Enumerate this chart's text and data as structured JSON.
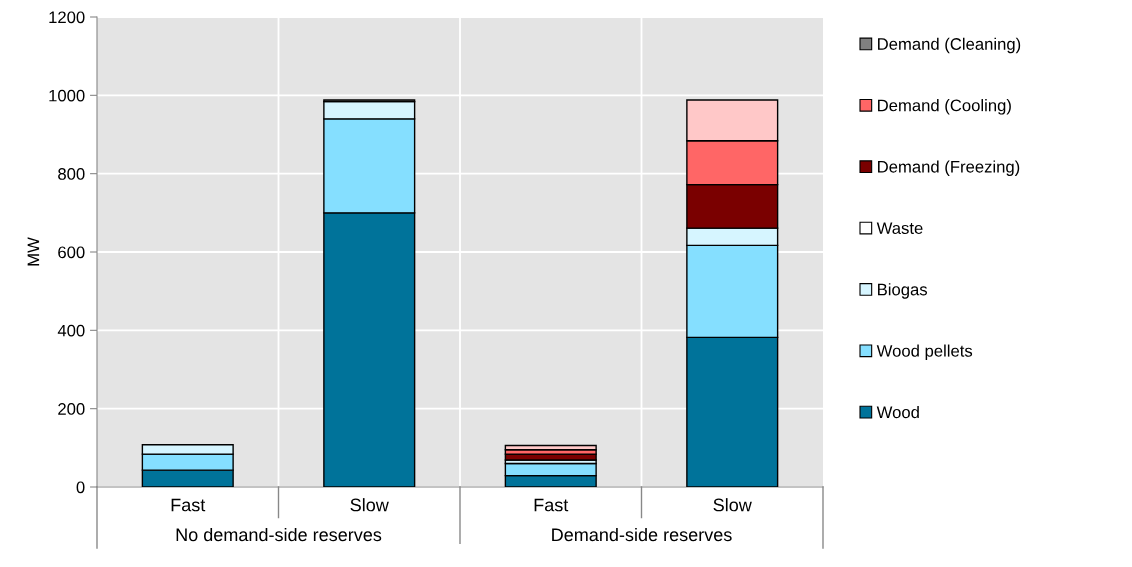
{
  "chart_data": {
    "type": "bar",
    "stacked": true,
    "ylabel": "MW",
    "categories": [
      "Fast",
      "Slow",
      "Fast",
      "Slow"
    ],
    "annotations": [
      "No demand-side reserves",
      "Demand-side reserves"
    ],
    "ylim": [
      0,
      1200
    ],
    "yticks": [
      0,
      200,
      400,
      600,
      800,
      1000,
      1200
    ],
    "grid": true,
    "legend": "right",
    "series": [
      {
        "name": "Wood",
        "color": "#00739a",
        "values": [
          43,
          700,
          29,
          382
        ]
      },
      {
        "name": "Wood pellets",
        "color": "#85dfff",
        "values": [
          41,
          240,
          31,
          235
        ]
      },
      {
        "name": "Biogas",
        "color": "#d6f5ff",
        "values": [
          24,
          44,
          9,
          44
        ]
      },
      {
        "name": "Waste",
        "color": "#ffffff",
        "values": [
          null,
          null,
          null,
          null
        ]
      },
      {
        "name": "Demand (Freezing)",
        "color": "#7a0000",
        "values": [
          null,
          null,
          15,
          111
        ]
      },
      {
        "name": "Demand (Cooling)",
        "color": "#ff6666",
        "values": [
          null,
          null,
          11,
          112
        ]
      },
      {
        "name": "Demand (Cleaning)",
        "color": "#808080",
        "values": [
          null,
          4,
          null,
          null
        ]
      },
      {
        "color": "#ffc8c8",
        "values": [
          null,
          null,
          11,
          104
        ]
      }
    ]
  }
}
